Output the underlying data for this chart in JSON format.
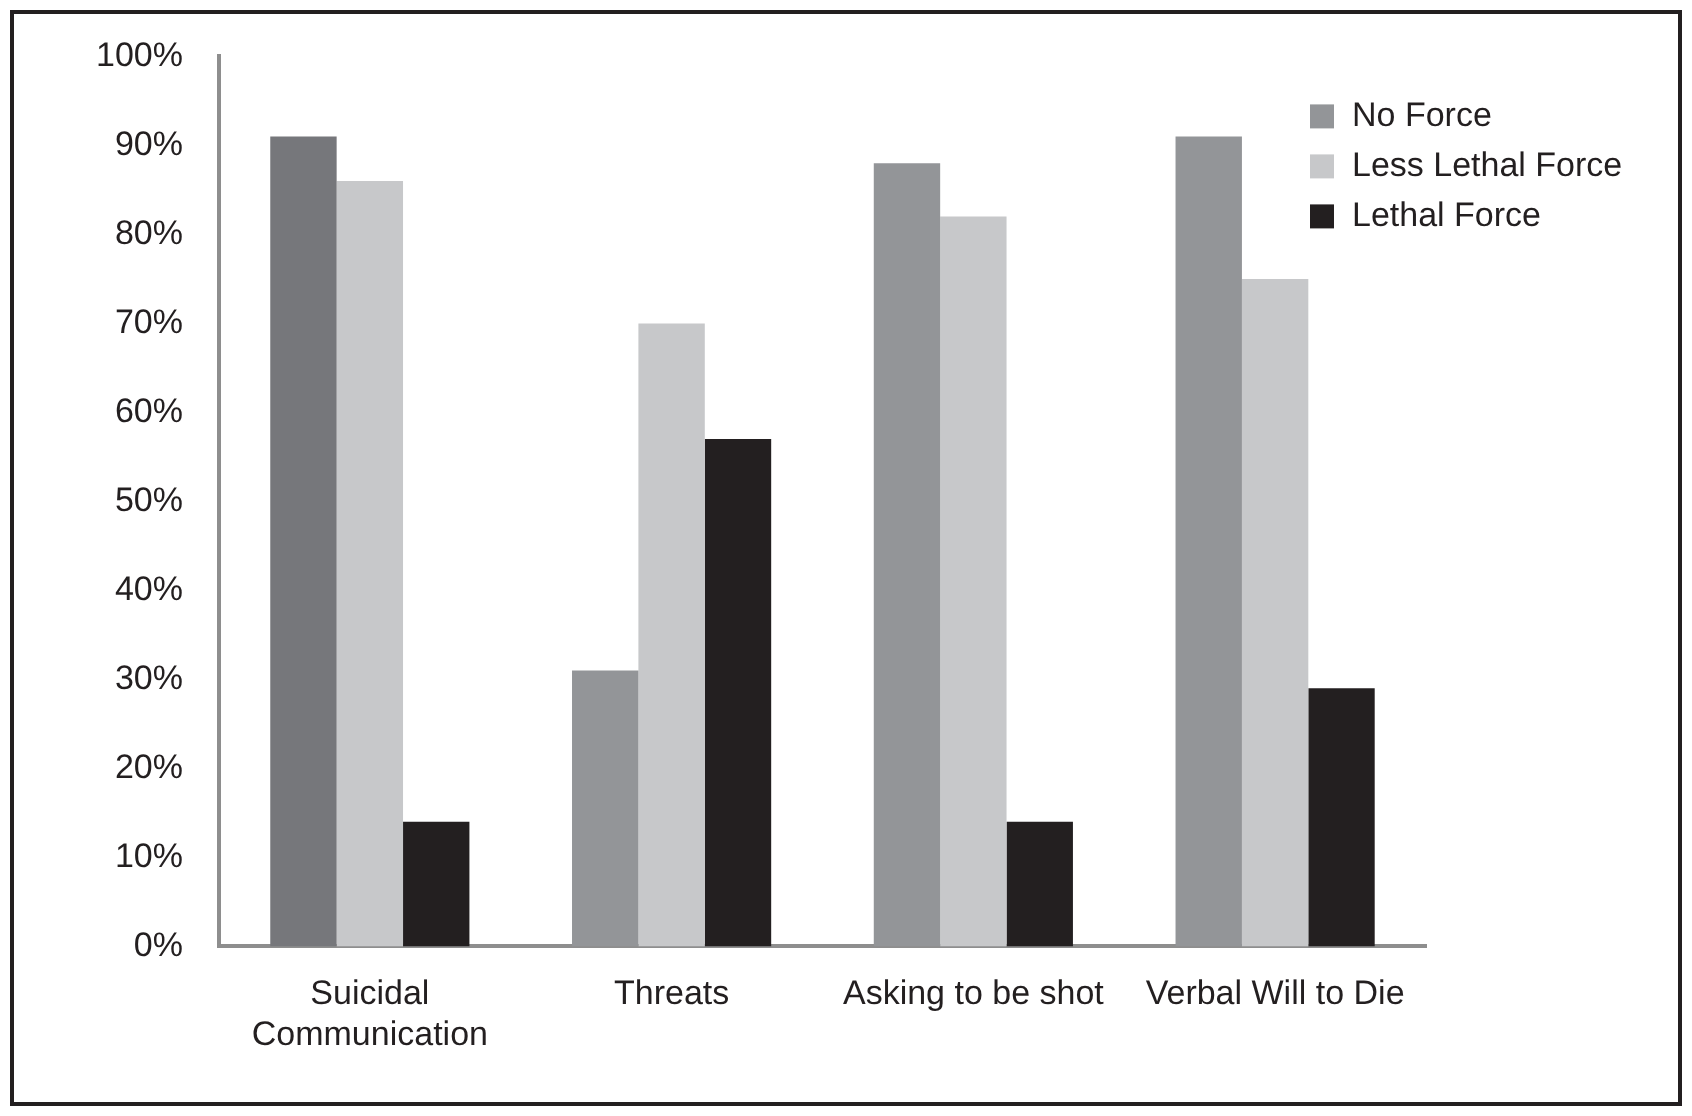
{
  "chart_data": {
    "type": "bar",
    "categories": [
      "Suicidal Communication",
      "Threats",
      "Asking to be shot",
      "Verbal Will to Die"
    ],
    "series": [
      {
        "name": "No Force",
        "color": "#939598",
        "colors": [
          "#76777b",
          "#939598",
          "#939598",
          "#939598"
        ],
        "values": [
          91,
          31,
          88,
          91
        ]
      },
      {
        "name": "Less Lethal Force",
        "color": "#c7c8ca",
        "values": [
          86,
          70,
          82,
          75
        ]
      },
      {
        "name": "Lethal Force",
        "color": "#231f20",
        "values": [
          14,
          57,
          14,
          29
        ]
      }
    ],
    "ylim": [
      0,
      100
    ],
    "yticks": [
      {
        "value": 0,
        "label": "0%"
      },
      {
        "value": 10,
        "label": "10%"
      },
      {
        "value": 20,
        "label": "20%"
      },
      {
        "value": 30,
        "label": "30%"
      },
      {
        "value": 40,
        "label": "40%"
      },
      {
        "value": 50,
        "label": "50%"
      },
      {
        "value": 60,
        "label": "60%"
      },
      {
        "value": 70,
        "label": "70%"
      },
      {
        "value": 80,
        "label": "80%"
      },
      {
        "value": 90,
        "label": "90%"
      },
      {
        "value": 100,
        "label": "100%"
      }
    ],
    "grid": false,
    "legend": "top right"
  }
}
